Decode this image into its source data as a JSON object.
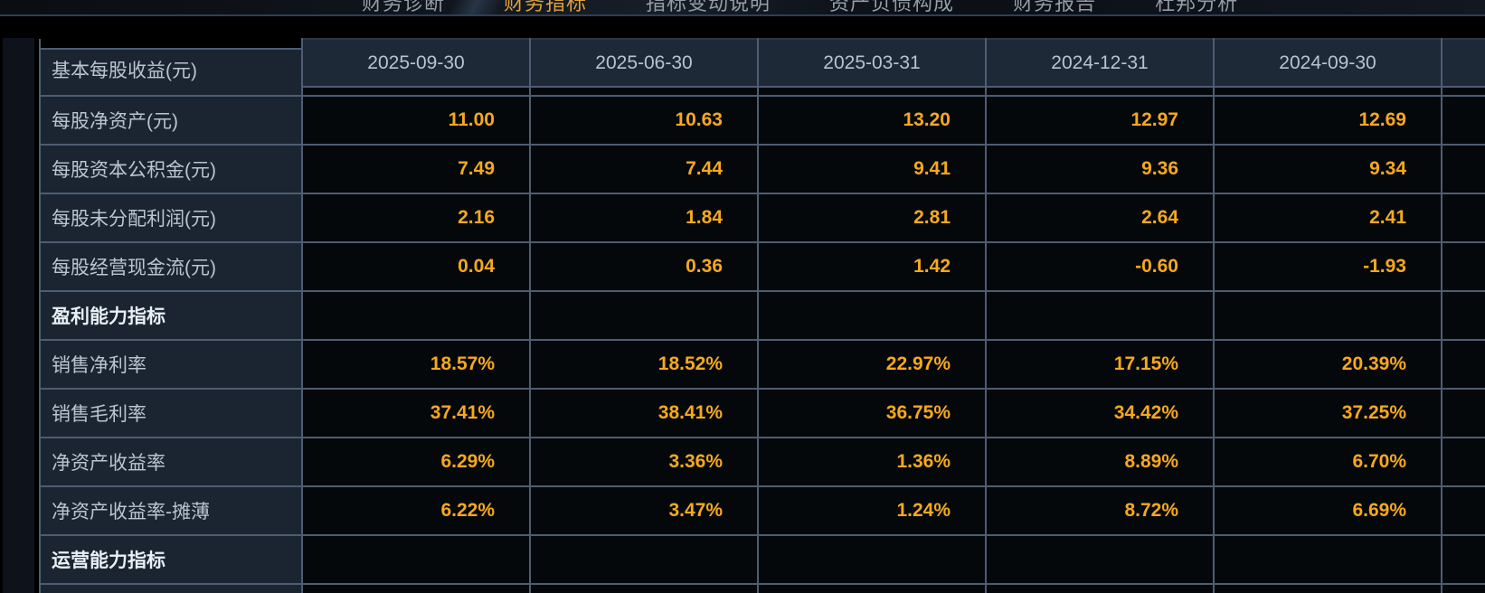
{
  "nav": {
    "tabs": [
      {
        "label": "财务诊断",
        "active": false
      },
      {
        "label": "财务指标",
        "active": true
      },
      {
        "label": "指标变动说明",
        "active": false
      },
      {
        "label": "资产负债构成",
        "active": false
      },
      {
        "label": "财务报告",
        "active": false
      },
      {
        "label": "杜邦分析",
        "active": false
      }
    ]
  },
  "table": {
    "corner_label": "基本每股收益(元)",
    "columns": [
      "2025-09-30",
      "2025-06-30",
      "2025-03-31",
      "2024-12-31",
      "2024-09-30"
    ],
    "rows": [
      {
        "label": "每股净资产(元)",
        "type": "data",
        "values": [
          "11.00",
          "10.63",
          "13.20",
          "12.97",
          "12.69"
        ]
      },
      {
        "label": "每股资本公积金(元)",
        "type": "data",
        "values": [
          "7.49",
          "7.44",
          "9.41",
          "9.36",
          "9.34"
        ]
      },
      {
        "label": "每股未分配利润(元)",
        "type": "data",
        "values": [
          "2.16",
          "1.84",
          "2.81",
          "2.64",
          "2.41"
        ]
      },
      {
        "label": "每股经营现金流(元)",
        "type": "data",
        "values": [
          "0.04",
          "0.36",
          "1.42",
          "-0.60",
          "-1.93"
        ]
      },
      {
        "label": "盈利能力指标",
        "type": "section",
        "values": [
          "",
          "",
          "",
          "",
          ""
        ]
      },
      {
        "label": "销售净利率",
        "type": "data",
        "values": [
          "18.57%",
          "18.52%",
          "22.97%",
          "17.15%",
          "20.39%"
        ]
      },
      {
        "label": "销售毛利率",
        "type": "data",
        "values": [
          "37.41%",
          "38.41%",
          "36.75%",
          "34.42%",
          "37.25%"
        ]
      },
      {
        "label": "净资产收益率",
        "type": "data",
        "values": [
          "6.29%",
          "3.36%",
          "1.36%",
          "8.89%",
          "6.70%"
        ]
      },
      {
        "label": "净资产收益率-摊薄",
        "type": "data",
        "values": [
          "6.22%",
          "3.47%",
          "1.24%",
          "8.72%",
          "6.69%"
        ]
      },
      {
        "label": "运营能力指标",
        "type": "section",
        "values": [
          "",
          "",
          "",
          "",
          ""
        ]
      }
    ]
  },
  "colors": {
    "page_bg": "#000000",
    "accent_value": "#f6a91d",
    "active_tab": "#e0a23c",
    "label_cell_bg": "#1b2531",
    "header_cell_bg": "#1e2938",
    "value_cell_bg": "#05080b",
    "grid_border": "#4d5d72",
    "label_text": "#b9c5d1",
    "section_text": "#e9eff5"
  }
}
